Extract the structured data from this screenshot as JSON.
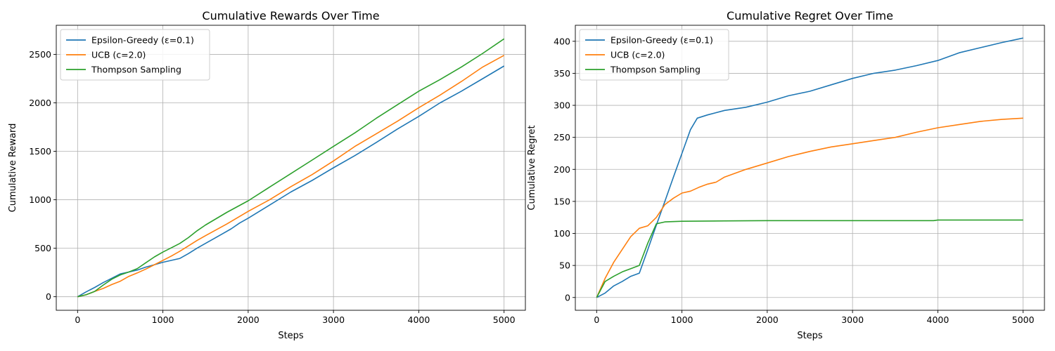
{
  "chart_data": [
    {
      "type": "line",
      "title": "Cumulative Rewards Over Time",
      "xlabel": "Steps",
      "ylabel": "Cumulative Reward",
      "xlim": [
        -250,
        5250
      ],
      "ylim": [
        -140,
        2800
      ],
      "xticks": [
        0,
        1000,
        2000,
        3000,
        4000,
        5000
      ],
      "yticks": [
        0,
        500,
        1000,
        1500,
        2000,
        2500
      ],
      "grid": true,
      "legend": "top-left",
      "series": [
        {
          "name": "Epsilon-Greedy (ε=0.1)",
          "color": "#1f77b4",
          "x": [
            0,
            100,
            200,
            300,
            400,
            500,
            600,
            700,
            800,
            900,
            1000,
            1100,
            1200,
            1300,
            1400,
            1500,
            1600,
            1700,
            1800,
            1900,
            2000,
            2250,
            2500,
            2750,
            3000,
            3250,
            3500,
            3750,
            4000,
            4250,
            4500,
            4750,
            5000
          ],
          "y": [
            0,
            50,
            95,
            145,
            190,
            235,
            255,
            275,
            305,
            330,
            355,
            375,
            395,
            445,
            500,
            550,
            600,
            650,
            700,
            760,
            810,
            945,
            1080,
            1200,
            1330,
            1455,
            1590,
            1730,
            1860,
            2000,
            2120,
            2250,
            2380
          ]
        },
        {
          "name": "UCB (c=2.0)",
          "color": "#ff7f0e",
          "x": [
            0,
            100,
            200,
            300,
            400,
            500,
            600,
            700,
            800,
            900,
            1000,
            1100,
            1200,
            1300,
            1400,
            1500,
            1750,
            2000,
            2250,
            2500,
            2750,
            3000,
            3250,
            3500,
            3750,
            4000,
            4250,
            4500,
            4750,
            5000
          ],
          "y": [
            0,
            20,
            55,
            85,
            125,
            160,
            210,
            245,
            285,
            330,
            375,
            420,
            470,
            525,
            580,
            630,
            750,
            880,
            1000,
            1135,
            1260,
            1400,
            1550,
            1680,
            1810,
            1950,
            2080,
            2220,
            2370,
            2490
          ]
        },
        {
          "name": "Thompson Sampling",
          "color": "#2ca02c",
          "x": [
            0,
            100,
            200,
            300,
            400,
            500,
            600,
            700,
            800,
            900,
            1000,
            1100,
            1200,
            1300,
            1400,
            1500,
            1750,
            2000,
            2250,
            2500,
            2750,
            3000,
            3250,
            3500,
            3750,
            4000,
            4250,
            4500,
            4750,
            5000
          ],
          "y": [
            0,
            20,
            55,
            120,
            180,
            225,
            255,
            290,
            350,
            410,
            460,
            505,
            550,
            610,
            680,
            740,
            870,
            990,
            1130,
            1270,
            1410,
            1550,
            1690,
            1840,
            1980,
            2120,
            2240,
            2370,
            2510,
            2660
          ]
        }
      ]
    },
    {
      "type": "line",
      "title": "Cumulative Regret Over Time",
      "xlabel": "Steps",
      "ylabel": "Cumulative Regret",
      "xlim": [
        -250,
        5250
      ],
      "ylim": [
        -20,
        425
      ],
      "xticks": [
        0,
        1000,
        2000,
        3000,
        4000,
        5000
      ],
      "yticks": [
        0,
        50,
        100,
        150,
        200,
        250,
        300,
        350,
        400
      ],
      "grid": true,
      "legend": "top-left",
      "series": [
        {
          "name": "Epsilon-Greedy (ε=0.1)",
          "color": "#1f77b4",
          "x": [
            0,
            100,
            200,
            300,
            400,
            500,
            600,
            700,
            800,
            900,
            1000,
            1100,
            1180,
            1300,
            1500,
            1750,
            2000,
            2250,
            2500,
            2750,
            3000,
            3250,
            3500,
            3750,
            4000,
            4250,
            4500,
            4750,
            5000
          ],
          "y": [
            0,
            7,
            18,
            25,
            33,
            38,
            75,
            113,
            150,
            188,
            225,
            262,
            280,
            285,
            292,
            297,
            305,
            315,
            322,
            332,
            342,
            350,
            355,
            362,
            370,
            382,
            390,
            398,
            405
          ]
        },
        {
          "name": "UCB (c=2.0)",
          "color": "#ff7f0e",
          "x": [
            0,
            100,
            200,
            300,
            400,
            500,
            600,
            700,
            800,
            900,
            1000,
            1100,
            1200,
            1300,
            1400,
            1500,
            1750,
            2000,
            2250,
            2500,
            2750,
            3000,
            3250,
            3500,
            3750,
            4000,
            4250,
            4500,
            4750,
            5000
          ],
          "y": [
            0,
            30,
            55,
            75,
            95,
            108,
            112,
            125,
            145,
            155,
            163,
            166,
            172,
            177,
            180,
            188,
            200,
            210,
            220,
            228,
            235,
            240,
            245,
            250,
            258,
            265,
            270,
            275,
            278,
            280
          ]
        },
        {
          "name": "Thompson Sampling",
          "color": "#2ca02c",
          "x": [
            0,
            100,
            200,
            300,
            400,
            500,
            600,
            700,
            800,
            1000,
            1500,
            2000,
            3000,
            3950,
            4000,
            5000
          ],
          "y": [
            0,
            25,
            33,
            40,
            45,
            50,
            85,
            115,
            118,
            119,
            119.5,
            120,
            120,
            120,
            121,
            121
          ]
        }
      ]
    }
  ]
}
